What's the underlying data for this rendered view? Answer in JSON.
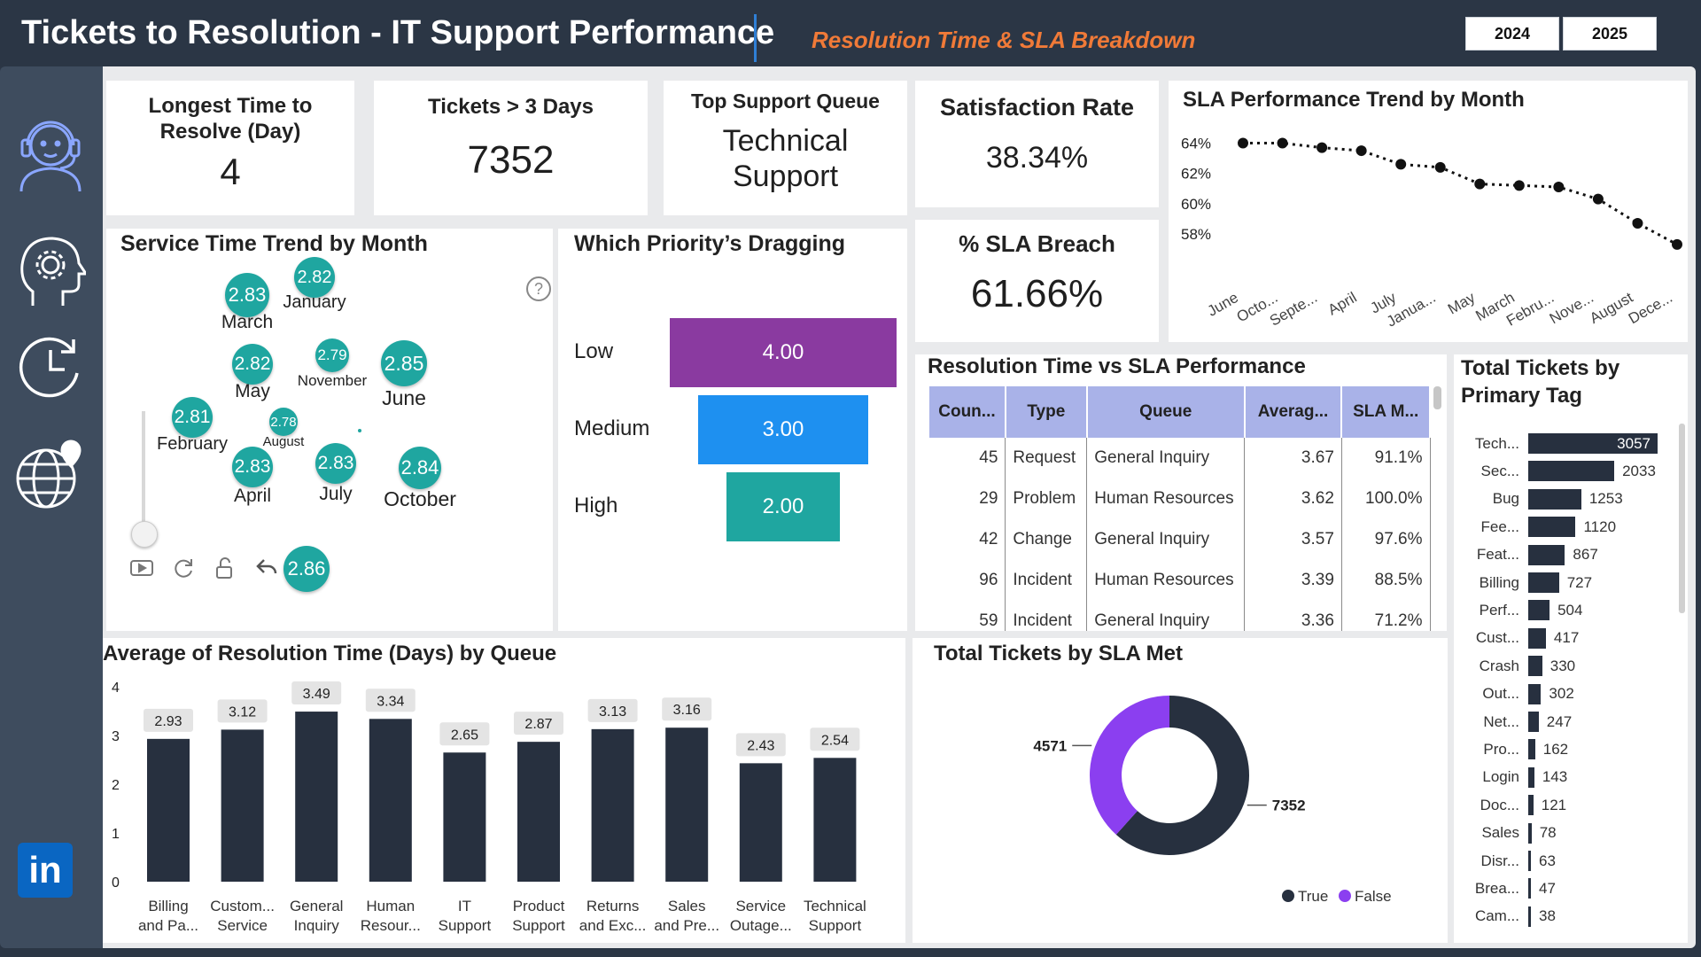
{
  "header": {
    "title": "Tickets to Resolution - IT Support Performance",
    "subtitle": "Resolution Time & SLA Breakdown",
    "years": [
      "2024",
      "2025"
    ]
  },
  "sidebar": {
    "icons": [
      "headset-agent-icon",
      "head-gear-icon",
      "clock-refresh-icon",
      "globe-location-icon"
    ],
    "bottom_icon": "linkedin-icon",
    "linkedin_label": "in"
  },
  "kpis": {
    "longest": {
      "title": "Longest Time to Resolve (Day)",
      "value": "4"
    },
    "tickets3": {
      "title": "Tickets > 3 Days",
      "value": "7352"
    },
    "queue": {
      "title": "Top Support Queue",
      "value_line1": "Technical",
      "value_line2": "Support"
    },
    "satisfaction": {
      "title": "Satisfaction Rate",
      "value": "38.34%"
    },
    "breach": {
      "title": "% SLA Breach",
      "value": "61.66%"
    }
  },
  "sla_trend": {
    "title": "SLA Performance Trend by Month",
    "chart_data": {
      "type": "line",
      "title": "SLA Performance Trend by Month",
      "categories": [
        "June",
        "Octo...",
        "Septe...",
        "April",
        "July",
        "Janua...",
        "May",
        "March",
        "Febru...",
        "Nove...",
        "August",
        "Dece..."
      ],
      "values": [
        64.0,
        64.0,
        63.7,
        63.5,
        62.6,
        62.4,
        61.3,
        61.2,
        61.1,
        60.3,
        58.7,
        57.3
      ],
      "y_ticks": [
        "64%",
        "62%",
        "60%",
        "58%"
      ],
      "ylim": [
        57,
        64.5
      ],
      "line_style": "dotted",
      "color": "#111111"
    }
  },
  "service_trend": {
    "title": "Service Time Trend by Month",
    "help_glyph": "?",
    "current_value": "2.86",
    "months": [
      {
        "label": "March",
        "value": "2.83"
      },
      {
        "label": "January",
        "value": "2.82"
      },
      {
        "label": "May",
        "value": "2.82"
      },
      {
        "label": "November",
        "value": "2.79"
      },
      {
        "label": "June",
        "value": "2.85"
      },
      {
        "label": "February",
        "value": "2.81"
      },
      {
        "label": "August",
        "value": "2.78"
      },
      {
        "label": "April",
        "value": "2.83"
      },
      {
        "label": "July",
        "value": "2.83"
      },
      {
        "label": "October",
        "value": "2.84"
      }
    ]
  },
  "priority": {
    "title": "Which Priority’s Dragging",
    "chart_data": {
      "type": "bar",
      "title": "Which Priority’s Dragging",
      "categories": [
        "Low",
        "Medium",
        "High"
      ],
      "values": [
        4.0,
        3.0,
        2.0
      ],
      "labels": [
        "4.00",
        "3.00",
        "2.00"
      ],
      "colors": [
        "#8a3aa0",
        "#1e90f0",
        "#1fa6a0"
      ]
    }
  },
  "res_table": {
    "title": "Resolution Time vs SLA Performance",
    "columns": [
      "Coun...",
      "Type",
      "Queue",
      "Averag...",
      "SLA M..."
    ],
    "rows": [
      [
        "45",
        "Request",
        "General Inquiry",
        "3.67",
        "91.1%"
      ],
      [
        "29",
        "Problem",
        "Human Resources",
        "3.62",
        "100.0%"
      ],
      [
        "42",
        "Change",
        "General Inquiry",
        "3.57",
        "97.6%"
      ],
      [
        "96",
        "Incident",
        "Human Resources",
        "3.39",
        "88.5%"
      ],
      [
        "59",
        "Incident",
        "General Inquiry",
        "3.36",
        "71.2%"
      ]
    ]
  },
  "tags": {
    "title_line1": "Total Tickets by",
    "title_line2": "Primary Tag",
    "chart_data": {
      "type": "bar",
      "title": "Total Tickets by Primary Tag",
      "categories": [
        "Tech...",
        "Sec...",
        "Bug",
        "Fee...",
        "Feat...",
        "Billing",
        "Perf...",
        "Cust...",
        "Crash",
        "Out...",
        "Net...",
        "Pro...",
        "Login",
        "Doc...",
        "Sales",
        "Disr...",
        "Brea...",
        "Cam..."
      ],
      "values": [
        3057,
        2033,
        1253,
        1120,
        867,
        727,
        504,
        417,
        330,
        302,
        247,
        162,
        143,
        121,
        78,
        63,
        47,
        38
      ],
      "color": "#27303f"
    }
  },
  "avg_queue": {
    "title": "Average of Resolution Time (Days) by Queue",
    "chart_data": {
      "type": "bar",
      "title": "Average of Resolution Time (Days) by Queue",
      "categories": [
        [
          "Billing",
          "and Pa..."
        ],
        [
          "Custom...",
          "Service"
        ],
        [
          "General",
          "Inquiry"
        ],
        [
          "Human",
          "Resour..."
        ],
        [
          "IT",
          "Support"
        ],
        [
          "Product",
          "Support"
        ],
        [
          "Returns",
          "and Exc..."
        ],
        [
          "Sales",
          "and Pre..."
        ],
        [
          "Service",
          "Outage..."
        ],
        [
          "Technical",
          "Support"
        ]
      ],
      "values": [
        2.93,
        3.12,
        3.49,
        3.34,
        2.65,
        2.87,
        3.13,
        3.16,
        2.43,
        2.54
      ],
      "y_ticks": [
        "0",
        "1",
        "2",
        "3",
        "4"
      ],
      "ylim": [
        0,
        4
      ],
      "color": "#27303f"
    }
  },
  "sla_met": {
    "title": "Total Tickets by SLA Met",
    "chart_data": {
      "type": "pie",
      "title": "Total Tickets by SLA Met",
      "labels": [
        "True",
        "False"
      ],
      "values": [
        7352,
        4571
      ],
      "value_labels": [
        "7352",
        "4571"
      ],
      "colors": [
        "#27303f",
        "#8b3ff0"
      ],
      "legend": "bottom-right"
    }
  }
}
